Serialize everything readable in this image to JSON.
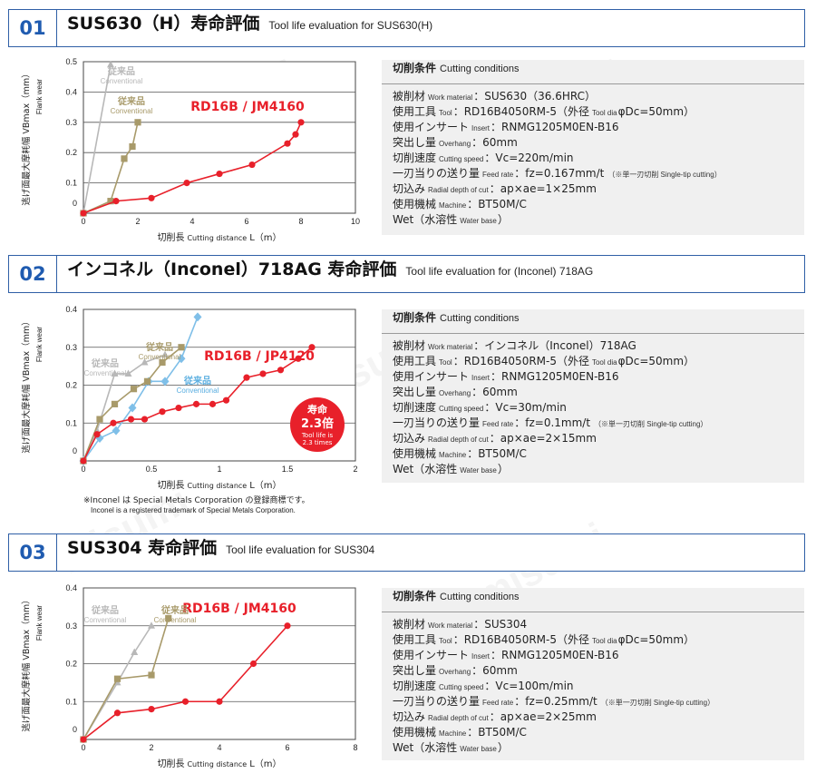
{
  "watermark": "misumi",
  "sections": [
    {
      "number": "01",
      "title": "SUS630（H）寿命評価",
      "subtitle": "Tool life evaluation for SUS630(H)",
      "conditions_title": "切削条件",
      "conditions_title_en": "Cutting conditions",
      "conditions": [
        {
          "label": "被削材",
          "label_en": "Work material",
          "value": "：SUS630（36.6HRC）"
        },
        {
          "label": "使用工具",
          "label_en": "Tool",
          "value": "：RD16B4050RM-5（外径",
          "value_en": "Tool dia",
          "value2": "φDc=50mm）"
        },
        {
          "label": "使用インサート",
          "label_en": "Insert",
          "value": "：RNMG1205M0EN-B16"
        },
        {
          "label": "突出し量",
          "label_en": "Overhang",
          "value": "：60mm"
        },
        {
          "label": "切削速度",
          "label_en": "Cutting speed",
          "value": "：Vc=220m/min"
        },
        {
          "label": "一刃当りの送り量",
          "label_en": "Feed rate",
          "value": "：fz=0.167mm/t",
          "note": "（※単一刃切削 Single-tip cutting）"
        },
        {
          "label": "切込み",
          "label_en": "Radial depth of cut",
          "value": "：ap×ae=1×25mm"
        },
        {
          "label": "使用機械",
          "label_en": "Machine",
          "value": "：BT50M/C"
        },
        {
          "label": "Wet（水溶性",
          "label_en": "Water base",
          "value": "）"
        }
      ]
    },
    {
      "number": "02",
      "title": "インコネル（Inconel）718AG 寿命評価",
      "subtitle": "Tool life evaluation for (Inconel) 718AG",
      "conditions_title": "切削条件",
      "conditions_title_en": "Cutting conditions",
      "conditions": [
        {
          "label": "被削材",
          "label_en": "Work material",
          "value": "：インコネル（Inconel）718AG"
        },
        {
          "label": "使用工具",
          "label_en": "Tool",
          "value": "：RD16B4050RM-5（外径",
          "value_en": "Tool dia",
          "value2": "φDc=50mm）"
        },
        {
          "label": "使用インサート",
          "label_en": "Insert",
          "value": "：RNMG1205M0EN-B16"
        },
        {
          "label": "突出し量",
          "label_en": "Overhang",
          "value": "：60mm"
        },
        {
          "label": "切削速度",
          "label_en": "Cutting speed",
          "value": "：Vc=30m/min"
        },
        {
          "label": "一刃当りの送り量",
          "label_en": "Feed rate",
          "value": "：fz=0.1mm/t",
          "note": "（※単一刃切削 Single-tip cutting）"
        },
        {
          "label": "切込み",
          "label_en": "Radial depth of cut",
          "value": "：ap×ae=2×15mm"
        },
        {
          "label": "使用機械",
          "label_en": "Machine",
          "value": "：BT50M/C"
        },
        {
          "label": "Wet（水溶性",
          "label_en": "Water base",
          "value": "）"
        }
      ],
      "footnote": "※Inconel は Special Metals Corporation の登録商標です。",
      "footnote_en": "Inconel is a registered trademark of Special Metals Corporation."
    },
    {
      "number": "03",
      "title": "SUS304 寿命評価",
      "subtitle": "Tool life evaluation for SUS304",
      "conditions_title": "切削条件",
      "conditions_title_en": "Cutting conditions",
      "conditions": [
        {
          "label": "被削材",
          "label_en": "Work material",
          "value": "：SUS304"
        },
        {
          "label": "使用工具",
          "label_en": "Tool",
          "value": "：RD16B4050RM-5（外径",
          "value_en": "Tool dia",
          "value2": "φDc=50mm）"
        },
        {
          "label": "使用インサート",
          "label_en": "Insert",
          "value": "：RNMG1205M0EN-B16"
        },
        {
          "label": "突出し量",
          "label_en": "Overhang",
          "value": "：60mm"
        },
        {
          "label": "切削速度",
          "label_en": "Cutting speed",
          "value": "：Vc=100m/min"
        },
        {
          "label": "一刃当りの送り量",
          "label_en": "Feed rate",
          "value": "：fz=0.25mm/t",
          "note": "（※単一刃切削 Single-tip cutting）"
        },
        {
          "label": "切込み",
          "label_en": "Radial depth of cut",
          "value": "：ap×ae=2×25mm"
        },
        {
          "label": "使用機械",
          "label_en": "Machine",
          "value": "：BT50M/C"
        },
        {
          "label": "Wet（水溶性",
          "label_en": "Water base",
          "value": "）"
        }
      ]
    }
  ],
  "chart_data": [
    {
      "type": "line",
      "ylabel": "逃げ面最大摩耗幅 VBmax（mm）",
      "ylabel_en": "Flank wear",
      "xlabel": "切削長",
      "xlabel_en": "Cutting distance",
      "xlabel_unit": "L（m）",
      "xlim": [
        0,
        10
      ],
      "ylim": [
        0,
        0.5
      ],
      "xticks": [
        "0",
        "2",
        "4",
        "6",
        "8",
        "10"
      ],
      "yticks": [
        "0",
        "0.1",
        "0.2",
        "0.3",
        "0.4",
        "0.5"
      ],
      "series": [
        {
          "name": "RD16B / JM4160",
          "color": "#e8202a",
          "marker": "circle",
          "x": [
            0,
            1.2,
            2.5,
            3.8,
            5,
            6.2,
            7.5,
            7.8,
            8
          ],
          "y": [
            0,
            0.04,
            0.05,
            0.1,
            0.13,
            0.16,
            0.23,
            0.26,
            0.3
          ]
        },
        {
          "name": "従来品",
          "name_en": "Conventional",
          "color": "#a89a6a",
          "marker": "square",
          "x": [
            0,
            1,
            1.5,
            1.8,
            2
          ],
          "y": [
            0,
            0.04,
            0.18,
            0.22,
            0.3
          ]
        },
        {
          "name": "従来品",
          "name_en": "Conventional",
          "color": "#b8b8b8",
          "marker": "triangle",
          "x": [
            0,
            1
          ],
          "y": [
            0,
            0.49
          ]
        }
      ]
    },
    {
      "type": "line",
      "ylabel": "逃げ面最大摩耗幅 VBmax（mm）",
      "ylabel_en": "Flank wear",
      "xlabel": "切削長",
      "xlabel_en": "Cutting distance",
      "xlabel_unit": "L（m）",
      "xlim": [
        0,
        2
      ],
      "ylim": [
        0,
        0.4
      ],
      "xticks": [
        "0",
        "0.5",
        "1",
        "1.5",
        "2"
      ],
      "yticks": [
        "0",
        "0.1",
        "0.2",
        "0.3",
        "0.4"
      ],
      "badge": {
        "title": "寿命",
        "value": "2.3倍",
        "en1": "Tool life is",
        "en2": "2.3 times"
      },
      "series": [
        {
          "name": "RD16B / JP4120",
          "color": "#e8202a",
          "marker": "circle",
          "x": [
            0,
            0.1,
            0.22,
            0.35,
            0.45,
            0.58,
            0.7,
            0.83,
            0.95,
            1.05,
            1.2,
            1.32,
            1.45,
            1.58,
            1.68
          ],
          "y": [
            0,
            0.07,
            0.1,
            0.11,
            0.11,
            0.13,
            0.14,
            0.15,
            0.15,
            0.16,
            0.22,
            0.23,
            0.24,
            0.27,
            0.3
          ]
        },
        {
          "name": "従来品",
          "name_en": "Conventional",
          "color": "#a89a6a",
          "marker": "square",
          "x": [
            0,
            0.12,
            0.23,
            0.37,
            0.47,
            0.58,
            0.72
          ],
          "y": [
            0,
            0.11,
            0.15,
            0.19,
            0.21,
            0.26,
            0.3
          ]
        },
        {
          "name": "従来品",
          "name_en": "Conventional",
          "color": "#b8b8b8",
          "marker": "triangle",
          "x": [
            0,
            0.1,
            0.23,
            0.33,
            0.45,
            0.6
          ],
          "y": [
            0,
            0.08,
            0.23,
            0.23,
            0.26,
            0.28
          ]
        },
        {
          "name": "従来品",
          "name_en": "Conventional",
          "color": "#7fbfe8",
          "marker": "diamond",
          "x": [
            0,
            0.12,
            0.24,
            0.36,
            0.48,
            0.6,
            0.72,
            0.84
          ],
          "y": [
            0,
            0.06,
            0.08,
            0.14,
            0.21,
            0.21,
            0.27,
            0.38
          ]
        }
      ]
    },
    {
      "type": "line",
      "ylabel": "逃げ面最大摩耗幅 VBmax（mm）",
      "ylabel_en": "Flank wear",
      "xlabel": "切削長",
      "xlabel_en": "Cutting distance",
      "xlabel_unit": "L（m）",
      "xlim": [
        0,
        8
      ],
      "ylim": [
        0,
        0.4
      ],
      "xticks": [
        "0",
        "2",
        "4",
        "6",
        "8"
      ],
      "yticks": [
        "0",
        "0.1",
        "0.2",
        "0.3",
        "0.4"
      ],
      "series": [
        {
          "name": "RD16B / JM4160",
          "color": "#e8202a",
          "marker": "circle",
          "x": [
            0,
            1,
            2,
            3,
            4,
            5,
            6
          ],
          "y": [
            0,
            0.07,
            0.08,
            0.1,
            0.1,
            0.2,
            0.3
          ]
        },
        {
          "name": "従来品",
          "name_en": "Conventional",
          "color": "#a89a6a",
          "marker": "square",
          "x": [
            0,
            1,
            2,
            2.5
          ],
          "y": [
            0,
            0.16,
            0.17,
            0.32
          ]
        },
        {
          "name": "従来品",
          "name_en": "Conventional",
          "color": "#b8b8b8",
          "marker": "triangle",
          "x": [
            0,
            1,
            1.5,
            2
          ],
          "y": [
            0,
            0.15,
            0.23,
            0.3
          ]
        }
      ]
    }
  ]
}
